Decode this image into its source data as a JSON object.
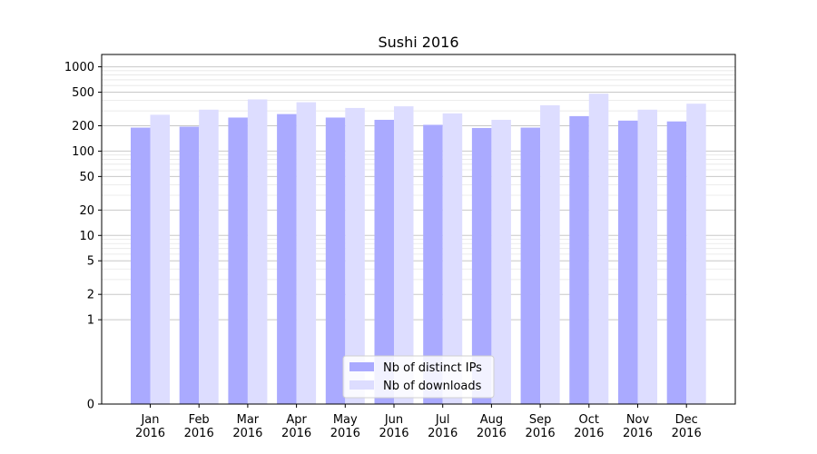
{
  "chart_data": {
    "type": "bar",
    "title": "Sushi 2016",
    "categories": [
      "Jan\n2016",
      "Feb\n2016",
      "Mar\n2016",
      "Apr\n2016",
      "May\n2016",
      "Jun\n2016",
      "Jul\n2016",
      "Aug\n2016",
      "Sep\n2016",
      "Oct\n2016",
      "Nov\n2016",
      "Dec\n2016"
    ],
    "series": [
      {
        "name": "Nb of distinct IPs",
        "color": "#aaaaff",
        "values": [
          190,
          195,
          250,
          275,
          250,
          235,
          205,
          188,
          190,
          260,
          230,
          225
        ]
      },
      {
        "name": "Nb of downloads",
        "color": "#ddddff",
        "values": [
          270,
          310,
          410,
          380,
          325,
          340,
          280,
          235,
          350,
          480,
          310,
          365
        ]
      }
    ],
    "yscale": "symlog",
    "ylim": [
      0,
      1400
    ],
    "yticks": [
      0,
      1,
      2,
      5,
      10,
      20,
      50,
      100,
      200,
      500,
      1000
    ],
    "ytick_labels": [
      "0",
      "1",
      "2",
      "5",
      "10",
      "20",
      "50",
      "100",
      "200",
      "500",
      "1000"
    ],
    "grid": true,
    "legend_position": "bottom-center",
    "xlabel": "",
    "ylabel": ""
  }
}
